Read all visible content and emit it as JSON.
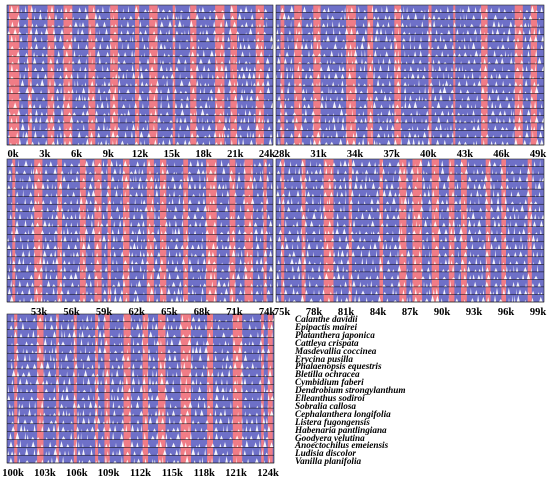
{
  "colors": {
    "coding": "#6e70c8",
    "noncoding": "#f07c86",
    "background": "#ffffff",
    "outline": "#000000"
  },
  "track_axis_labels": {
    "row1_left": [
      "0k",
      "3k",
      "6k",
      "9k",
      "12k",
      "15k",
      "18k",
      "21k",
      "24k"
    ],
    "row1_right": [
      "28k",
      "31k",
      "34k",
      "37k",
      "40k",
      "43k",
      "46k",
      "49k"
    ],
    "row2_left": [
      "53k",
      "56k",
      "59k",
      "62k",
      "65k",
      "68k",
      "71k",
      "74k"
    ],
    "row2_right": [
      "75k",
      "78k",
      "81k",
      "84k",
      "87k",
      "90k",
      "93k",
      "96k",
      "99k"
    ],
    "row3": [
      "100k",
      "103k",
      "106k",
      "109k",
      "112k",
      "115k",
      "118k",
      "121k",
      "124k"
    ]
  },
  "species": [
    "Calanthe davidii",
    "Epipactis mairei",
    "Platanthera japonica",
    "Cattleya crispata",
    "Masdevallia coccinea",
    "Erycina pusilla",
    "Phalaenopsis equestris",
    "Bletilla ochracea",
    "Cymbidium faberi",
    "Dendrobium strongylanthum",
    "Elleanthus sodiroi",
    "Sobralia callosa",
    "Cephalanthera longifolia",
    "Listera fugongensis",
    "Habenaria pantlingiana",
    "Goodyera velutina",
    "Anoectochilus emeiensis",
    "Ludisia discolor",
    "Vanilla planifolia"
  ]
}
